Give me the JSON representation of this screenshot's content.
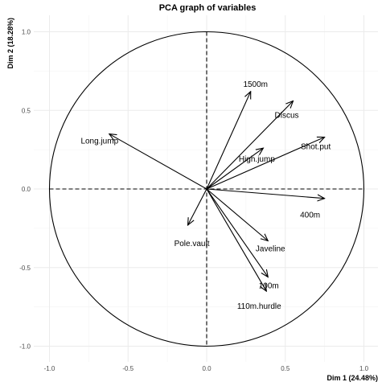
{
  "chart_data": {
    "type": "pca-correlation-circle",
    "title": "PCA graph of variables",
    "xlabel": "Dim 1 (24.48%)",
    "ylabel": "Dim 2 (18.28%)",
    "xlim": [
      -1.05,
      1.05
    ],
    "ylim": [
      -1.1,
      1.1
    ],
    "x_ticks": [
      -1.0,
      -0.5,
      0.0,
      0.5,
      1.0
    ],
    "y_ticks": [
      -1.0,
      -0.5,
      0.0,
      0.5,
      1.0
    ],
    "x_tick_labels": [
      "-1.0",
      "-0.5",
      "0.0",
      "0.5",
      "1.0"
    ],
    "y_tick_labels": [
      "-1.0",
      "-0.5",
      "0.0",
      "0.5",
      "1.0"
    ],
    "grid": true,
    "unit_circle": true,
    "variables": [
      {
        "name": "100m",
        "x": 0.39,
        "y": -0.56
      },
      {
        "name": "Long.jump",
        "x": -0.62,
        "y": 0.35
      },
      {
        "name": "Shot.put",
        "x": 0.75,
        "y": 0.33
      },
      {
        "name": "High.jump",
        "x": 0.36,
        "y": 0.26
      },
      {
        "name": "400m",
        "x": 0.75,
        "y": -0.06
      },
      {
        "name": "110m.hurdle",
        "x": 0.38,
        "y": -0.65
      },
      {
        "name": "Discus",
        "x": 0.55,
        "y": 0.56
      },
      {
        "name": "Pole.vault",
        "x": -0.12,
        "y": -0.23
      },
      {
        "name": "Javeline",
        "x": 0.39,
        "y": -0.33
      },
      {
        "name": "1500m",
        "x": 0.28,
        "y": 0.62
      }
    ]
  }
}
